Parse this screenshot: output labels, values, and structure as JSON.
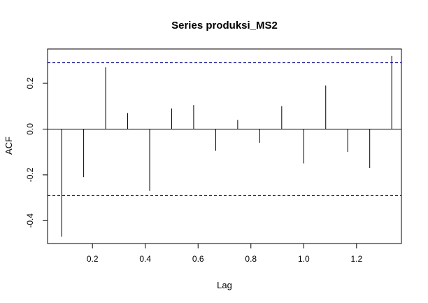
{
  "chart_data": {
    "type": "bar",
    "title": "Series  produksi_MS2",
    "xlabel": "Lag",
    "ylabel": "ACF",
    "xlim": [
      0.03,
      1.37
    ],
    "ylim": [
      -0.5,
      0.35
    ],
    "x_ticks": [
      {
        "value": 0.2,
        "label": "0.2"
      },
      {
        "value": 0.4,
        "label": "0.4"
      },
      {
        "value": 0.6,
        "label": "0.6"
      },
      {
        "value": 0.8,
        "label": "0.8"
      },
      {
        "value": 1.0,
        "label": "1.0"
      },
      {
        "value": 1.2,
        "label": "1.2"
      }
    ],
    "y_ticks": [
      {
        "value": -0.4,
        "label": "-0.4"
      },
      {
        "value": -0.2,
        "label": "-0.2"
      },
      {
        "value": 0.0,
        "label": "0.0"
      },
      {
        "value": 0.2,
        "label": "0.2"
      }
    ],
    "confidence_bound": 0.29,
    "bound_color": "#00008b",
    "grid": false,
    "lags": [
      0.0833,
      0.1667,
      0.25,
      0.3333,
      0.4167,
      0.5,
      0.5833,
      0.6667,
      0.75,
      0.8333,
      0.9167,
      1.0,
      1.0833,
      1.1667,
      1.25,
      1.3333
    ],
    "values": [
      -0.47,
      -0.21,
      0.27,
      0.07,
      -0.27,
      0.09,
      0.105,
      -0.095,
      0.04,
      -0.06,
      0.1,
      -0.15,
      0.19,
      -0.1,
      -0.17,
      0.32
    ]
  }
}
